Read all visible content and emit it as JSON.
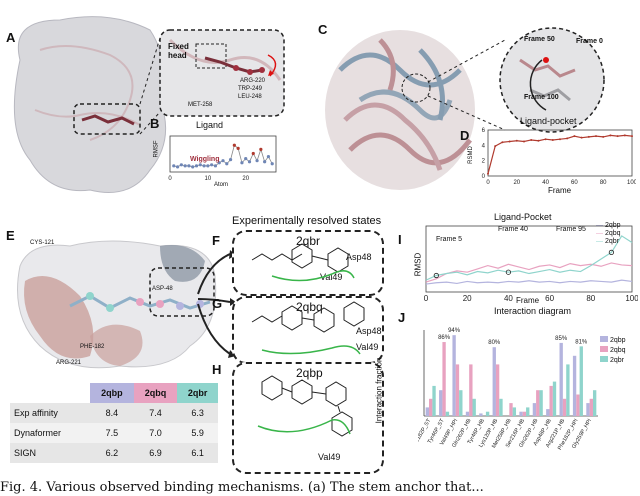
{
  "panels": {
    "a": {
      "label": "A",
      "fixed_head": "Fixed\nhead",
      "wiggling": "Wiggling",
      "residues": [
        "TRP-249",
        "LEU-248",
        "ARG-220",
        "MET-258"
      ]
    },
    "b": {
      "label": "B",
      "title": "Ligand",
      "xlabel": "Atom",
      "ylabel": "RMSF",
      "xticks": [
        "0",
        "10",
        "20"
      ]
    },
    "c": {
      "label": "C",
      "frames": [
        "Frame 50",
        "Frame 0",
        "Frame 100"
      ]
    },
    "d": {
      "label": "D",
      "title": "Ligand-pocket",
      "xlabel": "Frame",
      "ylabel": "RSMD",
      "xticks": [
        "0",
        "20",
        "40",
        "60",
        "80",
        "100"
      ],
      "yticks": [
        "0",
        "2",
        "4",
        "6"
      ]
    },
    "e": {
      "label": "E",
      "residues": [
        "CYS-121",
        "ASP-48",
        "PHE-182",
        "ARG-221"
      ]
    },
    "f": {
      "label": "F",
      "title": "Experimentally resolved states",
      "state": "2qbr",
      "residues": [
        "Asp48",
        "Val49"
      ]
    },
    "g": {
      "label": "G",
      "state": "2qbq",
      "residues": [
        "Asp48",
        "Val49"
      ]
    },
    "h": {
      "label": "H",
      "state": "2qbp",
      "residues": [
        "Val49"
      ]
    },
    "i": {
      "label": "I",
      "title": "Ligand-Pocket",
      "xlabel": "Frame",
      "ylabel": "RMSD",
      "frames": [
        "Frame 5",
        "Frame 40",
        "Frame 95"
      ],
      "legend": [
        "2qbp",
        "2qbq",
        "2qbr"
      ],
      "xticks": [
        "0",
        "20",
        "40",
        "60",
        "80",
        "100"
      ]
    },
    "j": {
      "label": "J",
      "title": "Interaction diagram",
      "ylabel": "Interaction fraction",
      "legend": [
        "2qbp",
        "2qbq",
        "2qbr"
      ]
    }
  },
  "table": {
    "headers": [
      "",
      "2qbp",
      "2qbq",
      "2qbr"
    ],
    "rows": [
      [
        "Exp affinity",
        "8.4",
        "7.4",
        "6.3"
      ],
      [
        "Dynaformer",
        "7.5",
        "7.0",
        "5.9"
      ],
      [
        "SIGN",
        "6.2",
        "6.9",
        "6.1"
      ]
    ]
  },
  "colors": {
    "s2qbp": "#b4b4de",
    "s2qbq": "#e8a2c0",
    "s2qbr": "#8fd4cc",
    "rmsd_line": "#b03a2e"
  },
  "caption": "Fig. 4. Various observed binding mechanisms. (a) The stem anchor that...",
  "chart_data": [
    {
      "type": "line",
      "title": "Ligand",
      "xlabel": "Atom",
      "ylabel": "RMSF",
      "xlim": [
        0,
        28
      ],
      "ylim": [
        0,
        3.5
      ],
      "x": [
        1,
        2,
        3,
        4,
        5,
        6,
        7,
        8,
        9,
        10,
        11,
        12,
        13,
        14,
        15,
        16,
        17,
        18,
        19,
        20,
        21,
        22,
        23,
        24,
        25,
        26,
        27
      ],
      "values": [
        0.6,
        0.5,
        0.7,
        0.6,
        0.6,
        0.5,
        0.6,
        0.7,
        0.6,
        0.6,
        0.7,
        0.6,
        0.9,
        1.1,
        0.8,
        1.2,
        2.6,
        2.3,
        0.9,
        1.3,
        1.0,
        1.8,
        1.1,
        2.2,
        1.0,
        1.5,
        0.8
      ]
    },
    {
      "type": "line",
      "title": "Ligand-pocket",
      "xlabel": "Frame",
      "ylabel": "RSMD",
      "xlim": [
        0,
        100
      ],
      "ylim": [
        0,
        6
      ],
      "x": [
        0,
        5,
        10,
        15,
        20,
        25,
        30,
        35,
        40,
        45,
        50,
        55,
        60,
        65,
        70,
        75,
        80,
        85,
        90,
        95,
        100
      ],
      "values": [
        0.3,
        3.9,
        4.4,
        4.5,
        4.6,
        4.5,
        4.7,
        4.6,
        4.8,
        4.7,
        4.8,
        4.9,
        5.2,
        5.0,
        5.1,
        5.2,
        5.1,
        5.3,
        5.2,
        5.3,
        5.2
      ]
    },
    {
      "type": "line",
      "title": "Ligand-Pocket",
      "xlabel": "Frame",
      "ylabel": "RMSD",
      "xlim": [
        0,
        100
      ],
      "ylim": [
        0,
        10
      ],
      "x": [
        0,
        5,
        10,
        15,
        20,
        25,
        30,
        35,
        40,
        45,
        50,
        55,
        60,
        65,
        70,
        75,
        80,
        85,
        90,
        95,
        100
      ],
      "series": [
        {
          "name": "2qbp",
          "values": [
            1.2,
            1.4,
            1.5,
            1.3,
            1.6,
            1.4,
            1.5,
            1.4,
            1.6,
            1.5,
            1.7,
            1.5,
            1.6,
            1.4,
            1.6,
            1.5,
            1.7,
            1.6,
            1.5,
            1.8,
            1.6
          ]
        },
        {
          "name": "2qbq",
          "values": [
            1.5,
            2.0,
            2.8,
            3.2,
            3.0,
            3.5,
            4.0,
            3.6,
            4.2,
            3.8,
            3.4,
            3.9,
            4.1,
            3.7,
            4.3,
            4.0,
            4.2,
            3.9,
            4.4,
            4.1,
            4.0
          ]
        },
        {
          "name": "2qbr",
          "values": [
            1.8,
            2.5,
            2.8,
            3.0,
            2.6,
            3.1,
            2.9,
            3.3,
            3.0,
            3.2,
            2.8,
            3.1,
            3.4,
            3.0,
            3.3,
            3.1,
            4.0,
            5.0,
            6.0,
            8.5,
            7.5
          ]
        }
      ]
    },
    {
      "type": "bar",
      "title": "Interaction diagram",
      "ylabel": "Interaction fraction",
      "ylim": [
        0,
        1
      ],
      "categories": [
        "Phe182P_ST",
        "Tyr46P_ST",
        "Val49P_HPI",
        "Gln262P_HB",
        "Tyr46P_HB",
        "Lys120P_HB",
        "Met258P_HB",
        "Ser216P_HB",
        "Gln262P_HB",
        "Asp48P_HB",
        "Arg221P_HB",
        "Phe182P_HPI",
        "Gly259P_HPI"
      ],
      "series": [
        {
          "name": "2qbp",
          "values": [
            0.1,
            0.3,
            0.94,
            0.05,
            0.03,
            0.8,
            0.0,
            0.05,
            0.15,
            0.08,
            0.85,
            0.7,
            0.15
          ]
        },
        {
          "name": "2qbq",
          "values": [
            0.2,
            0.86,
            0.6,
            0.6,
            0.0,
            0.6,
            0.15,
            0.05,
            0.3,
            0.35,
            0.2,
            0.25,
            0.2
          ]
        },
        {
          "name": "2qbr",
          "values": [
            0.35,
            0.05,
            0.3,
            0.2,
            0.05,
            0.2,
            0.1,
            0.1,
            0.3,
            0.4,
            0.6,
            0.81,
            0.3
          ]
        }
      ],
      "annotations": [
        "86%",
        "94%",
        "80%",
        "85%",
        "81%"
      ]
    }
  ]
}
